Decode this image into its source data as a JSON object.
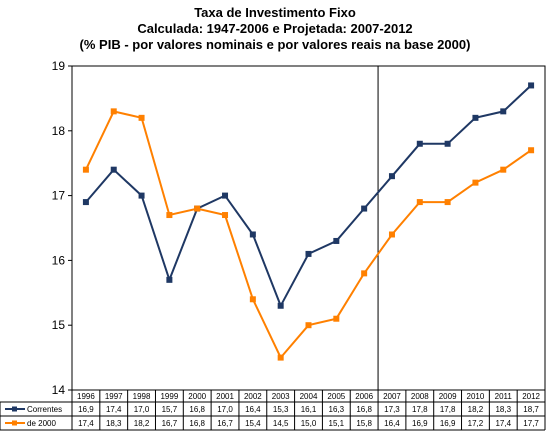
{
  "chart_data": {
    "type": "line",
    "title": "Taxa de Investimento Fixo",
    "subtitle": "Calculada: 1947-2006 e Projetada: 2007-2012",
    "subtitle2": "(% PIB - por valores nominais e por valores reais na base 2000)",
    "xlabel": "",
    "ylabel": "",
    "ylim": [
      14,
      19
    ],
    "yticks": [
      "14",
      "15",
      "16",
      "17",
      "18",
      "19"
    ],
    "grid": false,
    "divider_after": "2006",
    "categories": [
      "1996",
      "1997",
      "1998",
      "1999",
      "2000",
      "2001",
      "2002",
      "2003",
      "2004",
      "2005",
      "2006",
      "2007",
      "2008",
      "2009",
      "2010",
      "2011",
      "2012"
    ],
    "series": [
      {
        "name": "Correntes",
        "color": "#1f3864",
        "values": [
          16.9,
          17.4,
          17.0,
          15.7,
          16.8,
          17.0,
          16.4,
          15.3,
          16.1,
          16.3,
          16.8,
          17.3,
          17.8,
          17.8,
          18.2,
          18.3,
          18.7
        ],
        "labels": [
          "16,9",
          "17,4",
          "17,0",
          "15,7",
          "16,8",
          "17,0",
          "16,4",
          "15,3",
          "16,1",
          "16,3",
          "16,8",
          "17,3",
          "17,8",
          "17,8",
          "18,2",
          "18,3",
          "18,7"
        ]
      },
      {
        "name": "de 2000",
        "color": "#ff8000",
        "values": [
          17.4,
          18.3,
          18.2,
          16.7,
          16.8,
          16.7,
          15.4,
          14.5,
          15.0,
          15.1,
          15.8,
          16.4,
          16.9,
          16.9,
          17.2,
          17.4,
          17.7
        ],
        "labels": [
          "17,4",
          "18,3",
          "18,2",
          "16,7",
          "16,8",
          "16,7",
          "15,4",
          "14,5",
          "15,0",
          "15,1",
          "15,8",
          "16,4",
          "16,9",
          "16,9",
          "17,2",
          "17,4",
          "17,7"
        ]
      }
    ]
  }
}
